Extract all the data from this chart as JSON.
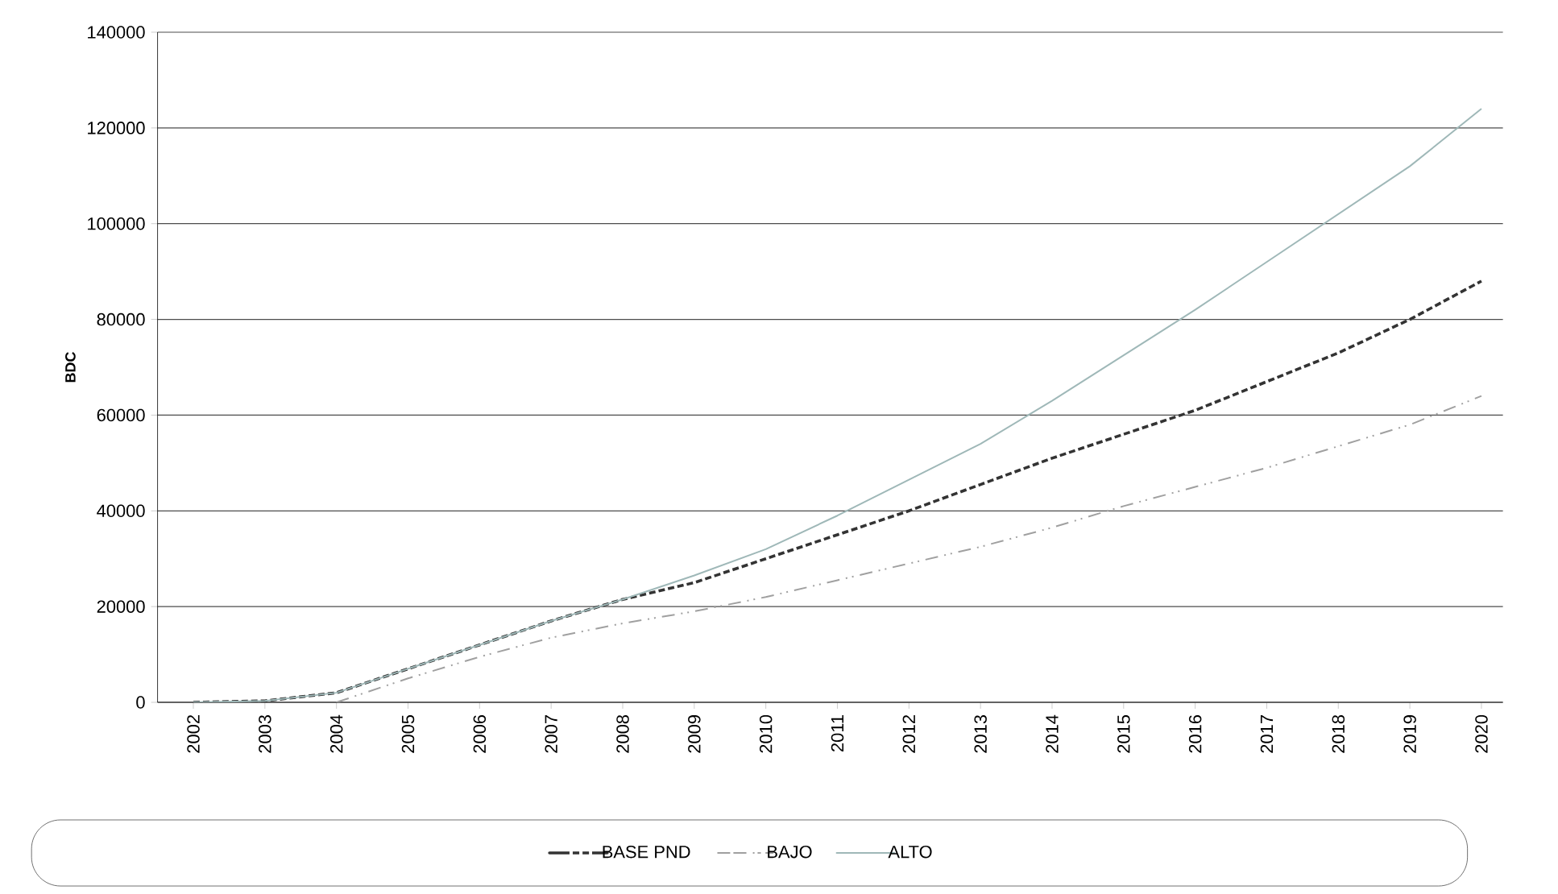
{
  "chart_data": {
    "type": "line",
    "ylabel": "BDC",
    "categories": [
      "2002",
      "2003",
      "2004",
      "2005",
      "2006",
      "2007",
      "2008",
      "2009",
      "2010",
      "2011",
      "2012",
      "2013",
      "2014",
      "2015",
      "2016",
      "2017",
      "2018",
      "2019",
      "2020"
    ],
    "series": [
      {
        "name": "BASE PND",
        "color": "#333333",
        "line_style": "dashed",
        "values": [
          0,
          300,
          2000,
          7000,
          12000,
          17000,
          21500,
          25000,
          30000,
          35000,
          40000,
          45500,
          51000,
          56000,
          61000,
          67000,
          73000,
          80000,
          88000
        ]
      },
      {
        "name": "BAJO",
        "color": "#a0a0a0",
        "line_style": "dashdotdot",
        "values": [
          null,
          null,
          0,
          5000,
          9500,
          13500,
          16500,
          19000,
          22000,
          25500,
          29000,
          32500,
          36500,
          41000,
          45000,
          49000,
          53500,
          58000,
          64000
        ]
      },
      {
        "name": "ALTO",
        "color": "#9fb8b8",
        "line_style": "solid",
        "values": [
          0,
          300,
          2000,
          7000,
          12000,
          17000,
          21500,
          26500,
          32000,
          39000,
          46500,
          54000,
          63000,
          72500,
          82000,
          92000,
          102000,
          112000,
          124000
        ]
      }
    ],
    "ylim": [
      0,
      140000
    ],
    "yticks": [
      0,
      20000,
      40000,
      60000,
      80000,
      100000,
      120000,
      140000
    ],
    "grid": "y",
    "legend": "bottom",
    "marker": "none"
  }
}
